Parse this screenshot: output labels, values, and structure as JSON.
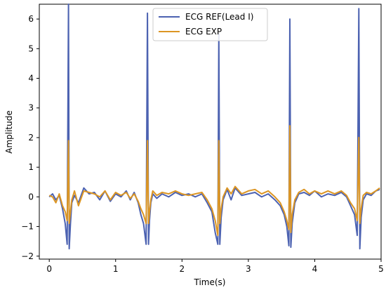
{
  "chart_data": {
    "type": "line",
    "title": "",
    "xlabel": "Time(s)",
    "ylabel": "Amplitude",
    "xlim": [
      -0.15,
      5.0
    ],
    "ylim": [
      -2.1,
      6.5
    ],
    "x_ticks": [
      0,
      1,
      2,
      3,
      4,
      5
    ],
    "y_ticks": [
      -2,
      -1,
      0,
      1,
      2,
      3,
      4,
      5,
      6
    ],
    "grid": false,
    "legend_position": "top-center",
    "series": [
      {
        "name": "ECG REF(Lead I)",
        "color": "#4c62b1",
        "x": [
          0.0,
          0.05,
          0.1,
          0.15,
          0.2,
          0.24,
          0.27,
          0.29,
          0.3,
          0.32,
          0.34,
          0.38,
          0.44,
          0.52,
          0.6,
          0.68,
          0.76,
          0.84,
          0.92,
          1.0,
          1.08,
          1.16,
          1.22,
          1.28,
          1.34,
          1.38,
          1.42,
          1.46,
          1.48,
          1.495,
          1.51,
          1.53,
          1.56,
          1.62,
          1.7,
          1.8,
          1.9,
          2.0,
          2.1,
          2.2,
          2.3,
          2.38,
          2.45,
          2.5,
          2.54,
          2.555,
          2.57,
          2.59,
          2.62,
          2.68,
          2.74,
          2.8,
          2.9,
          3.0,
          3.1,
          3.2,
          3.3,
          3.4,
          3.48,
          3.54,
          3.58,
          3.61,
          3.625,
          3.64,
          3.66,
          3.7,
          3.76,
          3.84,
          3.92,
          4.0,
          4.1,
          4.2,
          4.3,
          4.4,
          4.48,
          4.54,
          4.6,
          4.64,
          4.665,
          4.68,
          4.7,
          4.73,
          4.78,
          4.85,
          4.92,
          4.98
        ],
        "values": [
          0.0,
          0.1,
          -0.1,
          0.05,
          -0.4,
          -0.9,
          -1.6,
          6.5,
          -1.75,
          -0.9,
          -0.2,
          0.05,
          -0.2,
          0.3,
          0.1,
          0.15,
          -0.1,
          0.2,
          -0.15,
          0.1,
          0.0,
          0.2,
          -0.1,
          0.15,
          -0.2,
          -0.6,
          -0.9,
          -1.6,
          6.2,
          -1.6,
          -0.8,
          -0.2,
          0.1,
          -0.05,
          0.1,
          0.0,
          0.15,
          0.05,
          0.1,
          0.0,
          0.1,
          -0.2,
          -0.5,
          -1.2,
          -1.6,
          5.5,
          -1.6,
          -0.7,
          -0.1,
          0.25,
          -0.1,
          0.3,
          0.05,
          0.1,
          0.15,
          0.0,
          0.1,
          -0.1,
          -0.3,
          -0.6,
          -1.0,
          -1.65,
          6.0,
          -1.7,
          -0.9,
          -0.2,
          0.1,
          0.15,
          0.05,
          0.2,
          0.0,
          0.1,
          0.05,
          0.15,
          0.0,
          -0.3,
          -0.6,
          -1.3,
          6.35,
          -1.75,
          -0.7,
          -0.1,
          0.1,
          0.05,
          0.2,
          0.25
        ]
      },
      {
        "name": "ECG EXP",
        "color": "#dc9624",
        "x": [
          0.0,
          0.05,
          0.1,
          0.15,
          0.2,
          0.24,
          0.27,
          0.29,
          0.3,
          0.32,
          0.34,
          0.38,
          0.44,
          0.52,
          0.6,
          0.68,
          0.76,
          0.84,
          0.92,
          1.0,
          1.08,
          1.16,
          1.22,
          1.28,
          1.34,
          1.38,
          1.42,
          1.46,
          1.48,
          1.495,
          1.51,
          1.53,
          1.56,
          1.62,
          1.7,
          1.8,
          1.9,
          2.0,
          2.1,
          2.2,
          2.3,
          2.38,
          2.45,
          2.5,
          2.54,
          2.555,
          2.57,
          2.59,
          2.62,
          2.68,
          2.74,
          2.8,
          2.9,
          3.0,
          3.1,
          3.2,
          3.3,
          3.4,
          3.48,
          3.54,
          3.58,
          3.61,
          3.625,
          3.64,
          3.66,
          3.7,
          3.76,
          3.84,
          3.92,
          4.0,
          4.1,
          4.2,
          4.3,
          4.4,
          4.48,
          4.54,
          4.6,
          4.64,
          4.665,
          4.68,
          4.7,
          4.73,
          4.78,
          4.85,
          4.92,
          4.98
        ],
        "values": [
          0.05,
          0.0,
          -0.2,
          0.1,
          -0.3,
          -0.5,
          -0.8,
          1.9,
          -0.9,
          -0.5,
          -0.1,
          0.2,
          -0.3,
          0.2,
          0.15,
          0.1,
          0.0,
          0.2,
          -0.1,
          0.15,
          0.05,
          0.15,
          -0.05,
          0.1,
          -0.15,
          -0.4,
          -0.6,
          -0.9,
          1.9,
          -0.9,
          -0.5,
          -0.1,
          0.2,
          0.05,
          0.15,
          0.1,
          0.2,
          0.1,
          0.05,
          0.1,
          0.15,
          -0.1,
          -0.4,
          -0.8,
          -1.3,
          1.9,
          -0.9,
          -0.4,
          0.0,
          0.3,
          0.1,
          0.35,
          0.1,
          0.2,
          0.25,
          0.1,
          0.2,
          0.0,
          -0.2,
          -0.5,
          -0.8,
          -1.1,
          2.4,
          -1.2,
          -0.6,
          -0.1,
          0.15,
          0.25,
          0.1,
          0.2,
          0.1,
          0.2,
          0.1,
          0.2,
          0.05,
          -0.2,
          -0.4,
          -0.8,
          2.0,
          -0.9,
          -0.4,
          0.05,
          0.15,
          0.1,
          0.2,
          0.3
        ]
      }
    ]
  }
}
